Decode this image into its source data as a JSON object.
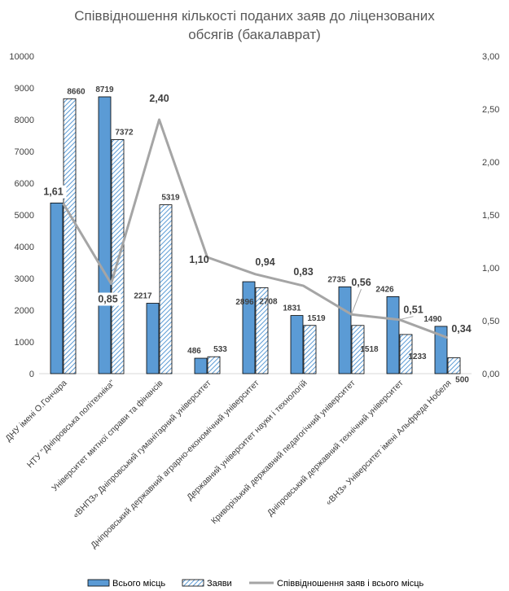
{
  "chart_data": {
    "type": "bar",
    "title_line1": "Співвідношення кількості поданих заяв до ліцензованих",
    "title_line2": "обсягів (бакалаврат)",
    "categories": [
      "ДНУ імені О.Гончара",
      "НТУ \"Дніпровська політехніка\"",
      "Університет митної справи та фінансів",
      "«ВНПЗ» Дніпровський гуманітарний університет",
      "Дніпровський державний аграрно-економічний університет",
      "Державний університет науки і технологій",
      "Криворізький державний педагогічний університет",
      "Дніпровський державний технічний університет",
      "«ВНЗ» Університет імені Альфреда Нобеля"
    ],
    "series": [
      {
        "name": "Всього місць",
        "values": [
          5376,
          8719,
          2217,
          486,
          2896,
          1831,
          2735,
          2426,
          1490
        ],
        "color": "#5b9bd5"
      },
      {
        "name": "Заяви",
        "values": [
          8660,
          7372,
          5319,
          533,
          2708,
          1519,
          1518,
          1233,
          500
        ],
        "color": "#5b9bd5"
      },
      {
        "name": "Співвідношення заяв і всього місць",
        "values": [
          1.61,
          0.85,
          2.4,
          1.1,
          0.94,
          0.83,
          0.56,
          0.51,
          0.34
        ],
        "color": "#a5a5a5",
        "axis": "right"
      }
    ],
    "left_axis": {
      "min": 0,
      "max": 10000,
      "step": 1000,
      "ticks": [
        "0",
        "1000",
        "2000",
        "3000",
        "4000",
        "5000",
        "6000",
        "7000",
        "8000",
        "9000",
        "10000"
      ]
    },
    "right_axis": {
      "min": 0,
      "max": 3,
      "step": 0.5,
      "ticks": [
        "0,00",
        "0,50",
        "1,00",
        "1,50",
        "2,00",
        "2,50",
        "3,00"
      ]
    },
    "ratio_labels": [
      "1,61",
      "0,85",
      "2,40",
      "1,10",
      "0,94",
      "0,83",
      "0,56",
      "0,51",
      "0,34"
    ],
    "grid": false,
    "legend": "bottom"
  }
}
